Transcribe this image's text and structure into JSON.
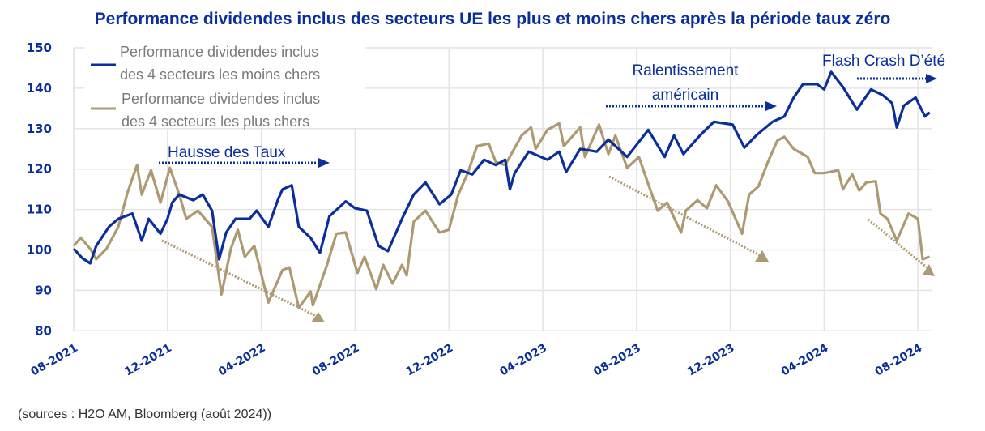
{
  "colors": {
    "cheap": "#0a2f9a",
    "expensive": "#ad9a72",
    "grid": "#e4e4e4",
    "text": "#0a2f9a"
  },
  "chart_data": {
    "type": "line",
    "title": "Performance dividendes inclus des secteurs UE les plus et moins chers après la période taux zéro",
    "xlabel": "",
    "ylabel": "",
    "ylim": [
      80,
      150
    ],
    "yticks": [
      "80",
      "90",
      "100",
      "110",
      "120",
      "130",
      "140",
      "150"
    ],
    "xtick_labels": [
      "08-2021",
      "12-2021",
      "04-2022",
      "08-2022",
      "12-2022",
      "04-2023",
      "08-2023",
      "12-2023",
      "04-2024",
      "08-2024"
    ],
    "x_unit": "months since 08-2021",
    "grid": true,
    "legend_position": "top-left",
    "series": [
      {
        "name": "Performance dividendes inclus des 4 secteurs les moins chers",
        "legend_lines": [
          "Performance dividendes inclus",
          "des 4 secteurs les moins chers"
        ],
        "color": "#0a2f9a",
        "x": [
          0,
          0.36,
          0.7,
          0.96,
          1.5,
          1.9,
          2.5,
          2.9,
          3.2,
          3.7,
          4.0,
          4.2,
          4.5,
          5.1,
          5.5,
          5.9,
          6.2,
          6.5,
          6.9,
          7.5,
          7.8,
          8.3,
          8.7,
          8.9,
          9.3,
          9.6,
          10.1,
          10.5,
          10.9,
          11.6,
          12.0,
          12.5,
          13.0,
          13.4,
          14.0,
          14.5,
          15.0,
          15.6,
          16.1,
          16.5,
          17.0,
          17.5,
          18.0,
          18.4,
          18.6,
          18.8,
          19.4,
          20.2,
          20.7,
          21.0,
          21.6,
          22.3,
          22.8,
          23.6,
          24.5,
          25.2,
          25.6,
          26.0,
          26.7,
          27.3,
          28.1,
          28.6,
          29.1,
          29.8,
          30.3,
          30.7,
          31.1,
          31.7,
          32.0,
          32.3,
          32.8,
          33.4,
          34.0,
          34.5,
          34.9,
          35.1,
          35.4,
          35.9,
          36.3,
          36.5
        ],
        "values": [
          100.3,
          98,
          96.7,
          101,
          105.7,
          107.7,
          109,
          102.3,
          107.7,
          104,
          107.7,
          111.7,
          113.7,
          112.3,
          113.7,
          109.7,
          97.7,
          104.3,
          107.7,
          107.7,
          109.7,
          105.7,
          112.3,
          115,
          116,
          105.7,
          103,
          99.3,
          108.3,
          112,
          110.3,
          109.7,
          101,
          99.7,
          107.7,
          113.7,
          116.7,
          111.3,
          113.7,
          119.7,
          118.7,
          122.3,
          121,
          122.3,
          115,
          119,
          124.3,
          122.3,
          124.3,
          119.3,
          125,
          124.3,
          127.3,
          123,
          129.7,
          123,
          128.3,
          123.7,
          128.3,
          131.7,
          131,
          125.3,
          128.3,
          131.7,
          133,
          137.7,
          141,
          141,
          139.7,
          144,
          140.3,
          134.7,
          139.7,
          138.3,
          136.3,
          130.3,
          135.7,
          137.7,
          133,
          134
        ]
      },
      {
        "name": "Performance dividendes inclus des 4 secteurs les plus chers",
        "legend_lines": [
          "Performance dividendes inclus",
          "des 4 secteurs les plus chers"
        ],
        "color": "#ad9a72",
        "x": [
          0,
          0.3,
          0.7,
          0.96,
          1.4,
          1.9,
          2.3,
          2.7,
          2.9,
          3.3,
          3.7,
          4.1,
          4.5,
          4.8,
          5.3,
          5.9,
          6.3,
          6.7,
          7.0,
          7.3,
          7.7,
          8.3,
          8.9,
          9.2,
          9.6,
          10.1,
          10.2,
          10.8,
          11.2,
          11.6,
          12.1,
          12.4,
          12.9,
          13.2,
          13.6,
          14.0,
          14.2,
          14.5,
          15.0,
          15.6,
          16.0,
          16.4,
          16.8,
          17.2,
          17.7,
          18.0,
          18.4,
          19.1,
          19.5,
          19.7,
          20.2,
          20.7,
          20.9,
          21.6,
          21.8,
          22.4,
          22.8,
          23.1,
          23.6,
          24.1,
          24.5,
          24.9,
          25.3,
          25.9,
          26.1,
          26.6,
          27.0,
          27.4,
          27.9,
          28.5,
          28.8,
          29.2,
          29.6,
          30.0,
          30.3,
          30.7,
          31.3,
          31.6,
          32.0,
          32.6,
          32.8,
          33.2,
          33.5,
          33.8,
          34.2,
          34.4,
          34.7,
          35.1,
          35.6,
          36.0,
          36.2,
          36.5
        ],
        "values": [
          101,
          103,
          100.3,
          97.7,
          100.3,
          105.7,
          114.3,
          121,
          113.7,
          119.7,
          111.7,
          120.3,
          113.7,
          107.7,
          109.7,
          105.7,
          89,
          100.3,
          105,
          98.3,
          101,
          87,
          95,
          95.7,
          85.7,
          89.7,
          86.3,
          96.3,
          104,
          104.3,
          94.3,
          98.3,
          90.3,
          96.3,
          91.7,
          96.3,
          93.7,
          107,
          109.7,
          104.3,
          105,
          113.7,
          119,
          125.7,
          126.3,
          121.7,
          121,
          128.3,
          130.3,
          125,
          129.7,
          131.3,
          125.7,
          130.3,
          123,
          131,
          123.7,
          128.3,
          120.3,
          123,
          116.3,
          109.7,
          111.7,
          104.3,
          109.7,
          112.3,
          110.3,
          116,
          112,
          104,
          113.7,
          115.7,
          121.7,
          127,
          128,
          125,
          123,
          119,
          119,
          119.7,
          115,
          118.7,
          114.7,
          116.7,
          117,
          109,
          107.7,
          102.3,
          109,
          107.7,
          97.7,
          98.3
        ]
      }
    ],
    "annotations": [
      {
        "id": "hausse",
        "text": "Hausse des Taux"
      },
      {
        "id": "ralentissement",
        "lines": [
          "Ralentissement",
          "américain"
        ]
      },
      {
        "id": "flash",
        "text": "Flash Crash D’été"
      }
    ]
  },
  "source": "(sources : H2O AM, Bloomberg (août 2024))"
}
